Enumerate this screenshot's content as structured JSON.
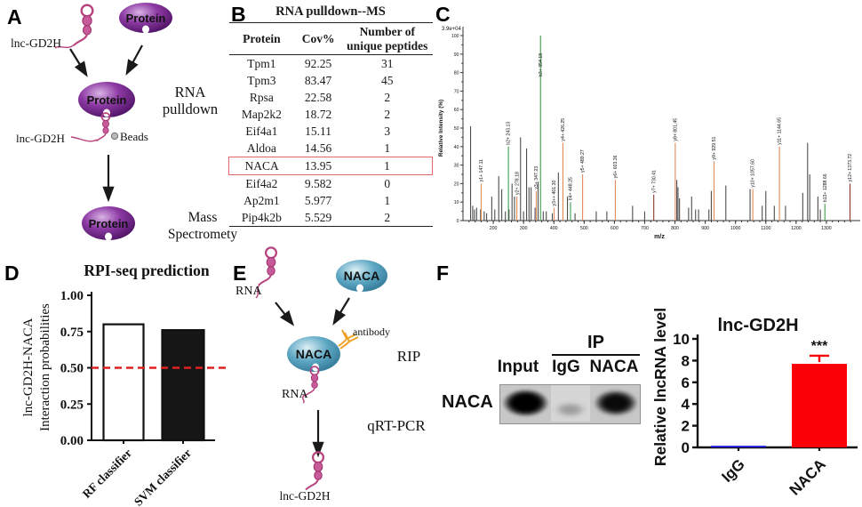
{
  "panel_a": {
    "label": "A",
    "lnc_gd2h_top": "lnc-GD2H",
    "protein_top": "Protein",
    "protein_mid": "Protein",
    "protein_bottom": "Protein",
    "lnc_gd2h_mid": "lnc-GD2H",
    "beads": "Beads",
    "step1_line1": "RNA",
    "step1_line2": "pulldown",
    "step2_line1": "Mass",
    "step2_line2": "Spectromety"
  },
  "panel_b": {
    "label": "B",
    "title": "RNA pulldown--MS",
    "headers": [
      "Protein",
      "Cov%",
      "Number of unique peptides"
    ],
    "rows": [
      [
        "Tpm1",
        "92.25",
        "31"
      ],
      [
        "Tpm3",
        "83.47",
        "45"
      ],
      [
        "Rpsa",
        "22.58",
        "2"
      ],
      [
        "Map2k2",
        "18.72",
        "2"
      ],
      [
        "Eif4a1",
        "15.11",
        "3"
      ],
      [
        "Aldoa",
        "14.56",
        "1"
      ],
      [
        "NACA",
        "13.95",
        "1"
      ],
      [
        "Eif4a2",
        "9.582",
        "0"
      ],
      [
        "Ap2m1",
        "5.977",
        "1"
      ],
      [
        "Pip4k2b",
        "5.529",
        "2"
      ]
    ],
    "highlighted_protein": "NACA",
    "highlight_color": "#e06666"
  },
  "panel_c": {
    "label": "C"
  },
  "panel_d": {
    "label": "D"
  },
  "panel_e": {
    "label": "E",
    "rna_top": "RNA",
    "naca_top": "NACA",
    "naca_mid": "NACA",
    "antibody": "antibody",
    "rna_mid": "RNA",
    "step1": "RIP",
    "step2": "qRT-PCR",
    "product": "lnc-GD2H"
  },
  "panel_f": {
    "label": "F",
    "blot": {
      "ip_header": "IP",
      "lane_headers": [
        "Input",
        "IgG",
        "NACA"
      ],
      "row_label": "NACA"
    }
  },
  "chart_data": [
    {
      "id": "ms_spectrum",
      "type": "bar",
      "subtype": "mass_spectrum",
      "title": "",
      "corner_label": "3.9e+04",
      "xlabel": "m/z",
      "ylabel": "Relative  Intensity (%)",
      "xlim": [
        100,
        1400
      ],
      "ylim": [
        0,
        100
      ],
      "xticks": [
        200,
        300,
        400,
        500,
        600,
        700,
        800,
        900,
        1000,
        1100,
        1200,
        1300
      ],
      "yticks": [
        0,
        10,
        20,
        30,
        40,
        50,
        60,
        70,
        80,
        90,
        100
      ],
      "colors": {
        "gray": "#4d4d4d",
        "orange": "#e08a5a",
        "green": "#3f9e4d",
        "darkred": "#8c3426"
      },
      "label_colors": {
        "gray": "#555555",
        "orange": "#9c3a1a",
        "green": "#1e6b2b",
        "darkred": "#7a241a"
      },
      "peaks": [
        [
          125,
          51
        ],
        [
          132,
          8
        ],
        [
          138,
          6
        ],
        [
          145,
          7
        ],
        [
          158,
          6
        ],
        [
          170,
          5
        ],
        [
          178,
          4
        ],
        [
          160,
          20,
          "orange",
          "y1+ 147.11"
        ],
        [
          195,
          13
        ],
        [
          205,
          6
        ],
        [
          218,
          24
        ],
        [
          228,
          17
        ],
        [
          240,
          5
        ],
        [
          250,
          40,
          "green",
          "b2+ 243.13"
        ],
        [
          252,
          6
        ],
        [
          262,
          20
        ],
        [
          270,
          13
        ],
        [
          278,
          13,
          "orange",
          "y2+ 278.18"
        ],
        [
          290,
          45
        ],
        [
          300,
          5
        ],
        [
          310,
          39
        ],
        [
          318,
          18
        ],
        [
          325,
          18
        ],
        [
          338,
          7
        ],
        [
          342,
          16,
          "orange",
          "y3+ 347.23"
        ],
        [
          348,
          21
        ],
        [
          356,
          100,
          "green",
          "b3+ 354.18"
        ],
        [
          365,
          5
        ],
        [
          375,
          5
        ],
        [
          395,
          4
        ],
        [
          401,
          7,
          "orange",
          "y3++ 401.30"
        ],
        [
          415,
          26
        ],
        [
          430,
          42,
          "orange",
          "y4+ 426.25"
        ],
        [
          445,
          13
        ],
        [
          455,
          10,
          "green",
          "b4+ 448.25"
        ],
        [
          470,
          4
        ],
        [
          495,
          25,
          "orange",
          "y5+ 489.27"
        ],
        [
          540,
          5
        ],
        [
          575,
          5
        ],
        [
          603,
          22,
          "orange",
          "y6+ 603.36"
        ],
        [
          660,
          8
        ],
        [
          700,
          5
        ],
        [
          730,
          14,
          "darkred",
          "y7+ 730.41"
        ],
        [
          801,
          42,
          "orange",
          "y8+ 801.45"
        ],
        [
          806,
          22
        ],
        [
          810,
          18
        ],
        [
          815,
          12
        ],
        [
          845,
          7
        ],
        [
          855,
          13
        ],
        [
          868,
          6
        ],
        [
          878,
          6
        ],
        [
          912,
          6
        ],
        [
          920,
          16
        ],
        [
          929,
          32,
          "orange",
          "y9+ 929.51"
        ],
        [
          968,
          19
        ],
        [
          1048,
          17
        ],
        [
          1057,
          17,
          "orange",
          "y10+ 1057.60"
        ],
        [
          1088,
          8
        ],
        [
          1100,
          16
        ],
        [
          1128,
          8
        ],
        [
          1145,
          40,
          "orange",
          "y11+ 1144.65"
        ],
        [
          1165,
          8
        ],
        [
          1222,
          15
        ],
        [
          1238,
          42
        ],
        [
          1245,
          25
        ],
        [
          1272,
          13
        ],
        [
          1280,
          6
        ],
        [
          1295,
          9,
          "green",
          "b13+ 1288.66"
        ],
        [
          1378,
          20,
          "darkred",
          "y12+ 1373.72"
        ]
      ]
    },
    {
      "id": "rpi_seq",
      "type": "bar",
      "title": "RPI-seq prediction",
      "ylabel_lines": [
        "lnc-GD2H-NACA",
        "Interaction probabilities"
      ],
      "categories": [
        "RF classifier",
        "SVM classifier"
      ],
      "values": [
        0.8,
        0.76
      ],
      "bar_colors": [
        "#ffffff",
        "#161616"
      ],
      "bar_border": "#111111",
      "ylim": [
        0,
        1
      ],
      "yticks": [
        0,
        0.25,
        0.5,
        0.75,
        1
      ],
      "ytick_labels": [
        "0.00",
        "0.25",
        "0.50",
        "0.75",
        "1.00"
      ],
      "threshold": {
        "value": 0.5,
        "color": "#e02020",
        "style": "dashed"
      }
    },
    {
      "id": "rip_qpcr",
      "type": "bar",
      "title": "lnc-GD2H",
      "ylabel_lines": [
        "Relative lncRNA level"
      ],
      "categories": [
        "IgG",
        "NACA"
      ],
      "values": [
        0.15,
        7.7
      ],
      "errors": [
        0,
        0.75
      ],
      "bar_colors": [
        "#1b1bdf",
        "#fb0006"
      ],
      "ylim": [
        0,
        10
      ],
      "yticks": [
        0,
        2,
        4,
        6,
        8,
        10
      ],
      "ytick_labels": [
        "0",
        "2",
        "4",
        "6",
        "8",
        "10"
      ],
      "significance": [
        {
          "category_index": 1,
          "label": "***"
        }
      ]
    }
  ]
}
